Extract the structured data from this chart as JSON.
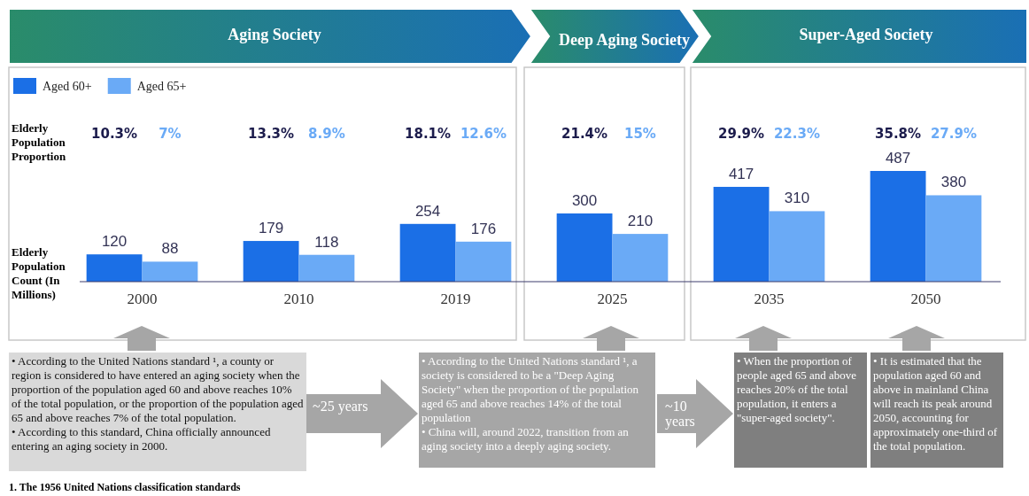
{
  "chart_data": {
    "type": "bar",
    "categories": [
      "2000",
      "2010",
      "2019",
      "2025",
      "2035",
      "2050"
    ],
    "ylabel": "Elderly Population Count (In Millions)",
    "series": [
      {
        "name": "Aged 60+",
        "color": "#1b6fe6",
        "values": [
          120,
          179,
          254,
          300,
          417,
          487
        ]
      },
      {
        "name": "Aged 65+",
        "color": "#6aaaf6",
        "values": [
          88,
          118,
          176,
          210,
          310,
          380
        ]
      }
    ],
    "data_labels": true,
    "legend": "top left",
    "annotations": [
      "Aging Society",
      "Deep Aging Society",
      "Super-Aged Society",
      "Elderly Population Proportion",
      "10.3%",
      "7%",
      "13.3%",
      "8.9%",
      "18.1%",
      "12.6%",
      "21.4%",
      "15%",
      "29.9%",
      "22.3%",
      "35.8%",
      "27.9%",
      "• According to the United Nations standard ¹, a county or region is considered to have entered an aging society when the proportion of the population aged 60 and above reaches 10% of the total population, or the proportion of the population aged 65 and above reaches 7% of the total population.\n• According to this standard, China officially announced entering an aging society in 2000.",
      "• According to the United Nations standard ¹, a society is considered to be a \"Deep Aging Society\" when the proportion of the population aged 65 and above reaches 14% of the total population\n• China will, around 2022, transition from an aging society into a deeply aging society.",
      "• When the proportion of people aged 65 and above reaches 20% of the total population, it enters a \"super-aged society\".",
      "• It is estimated that the population aged 60 and above in mainland China will reach its peak around 2050, accounting for approximately one-third of the total population.",
      "~25 years",
      "~10 years",
      "1. The 1956 United Nations classification standards"
    ]
  }
}
